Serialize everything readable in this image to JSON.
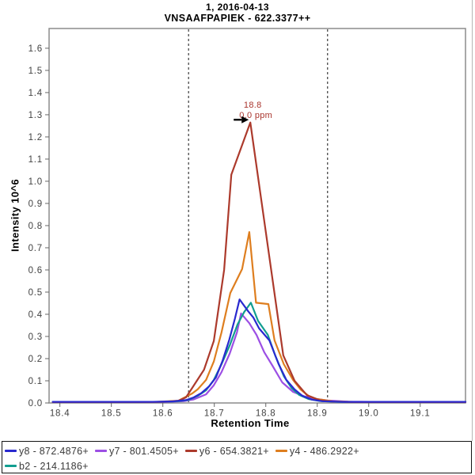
{
  "title": "1, 2016-04-13",
  "subtitle": "VNSAAFPAPIEK - 622.3377++",
  "legend": {
    "rows": [
      [
        {
          "label": "y8 - 872.4876+",
          "color": "#2929CF"
        },
        {
          "label": "y7 - 801.4505+",
          "color": "#9C4FE4"
        },
        {
          "label": "y6 - 654.3821+",
          "color": "#AC3A2C"
        },
        {
          "label": "y4 - 486.2922+",
          "color": "#DE7E1F"
        }
      ],
      [
        {
          "label": "b2 - 214.1186+",
          "color": "#129E90"
        }
      ]
    ]
  },
  "chart_data": {
    "type": "line",
    "title": "1, 2016-04-13",
    "subtitle": "VNSAAFPAPIEK - 622.3377++",
    "xlabel": "Retention Time",
    "ylabel": "Intensity 10^6",
    "xlim": [
      18.379,
      19.188
    ],
    "ylim": [
      0,
      1.689
    ],
    "xticks": [
      18.4,
      18.5,
      18.6,
      18.7,
      18.8,
      18.9,
      19.0,
      19.1
    ],
    "yticks": [
      0.0,
      0.1,
      0.2,
      0.3,
      0.4,
      0.5,
      0.6,
      0.7,
      0.8,
      0.9,
      1.0,
      1.1,
      1.2,
      1.3,
      1.4,
      1.5,
      1.6
    ],
    "grid": false,
    "legend_position": "bottom",
    "peak_boundaries_rt": [
      18.65,
      18.92
    ],
    "annotation": {
      "rt": 18.77,
      "intensity": 1.265,
      "line1": "18.8",
      "line2": "0.0 ppm",
      "color": "#A9342C"
    },
    "draw_order": [
      1,
      4,
      3,
      2,
      0
    ],
    "series": [
      {
        "name": "y8 - 872.4876+",
        "color": "#2929CF",
        "points": [
          [
            18.386,
            0.005
          ],
          [
            18.58,
            0.005
          ],
          [
            18.62,
            0.007
          ],
          [
            18.645,
            0.013
          ],
          [
            18.66,
            0.025
          ],
          [
            18.675,
            0.045
          ],
          [
            18.69,
            0.075
          ],
          [
            18.703,
            0.115
          ],
          [
            18.716,
            0.19
          ],
          [
            18.729,
            0.285
          ],
          [
            18.74,
            0.38
          ],
          [
            18.749,
            0.467
          ],
          [
            18.766,
            0.413
          ],
          [
            18.776,
            0.385
          ],
          [
            18.787,
            0.336
          ],
          [
            18.807,
            0.282
          ],
          [
            18.825,
            0.175
          ],
          [
            18.84,
            0.104
          ],
          [
            18.856,
            0.061
          ],
          [
            18.871,
            0.032
          ],
          [
            18.89,
            0.015
          ],
          [
            18.91,
            0.008
          ],
          [
            18.95,
            0.005
          ],
          [
            19.05,
            0.005
          ],
          [
            19.188,
            0.005
          ]
        ]
      },
      {
        "name": "y7 - 801.4505+",
        "color": "#9C4FE4",
        "points": [
          [
            18.386,
            0.004
          ],
          [
            18.6,
            0.004
          ],
          [
            18.64,
            0.008
          ],
          [
            18.66,
            0.016
          ],
          [
            18.684,
            0.039
          ],
          [
            18.699,
            0.08
          ],
          [
            18.714,
            0.139
          ],
          [
            18.73,
            0.223
          ],
          [
            18.744,
            0.318
          ],
          [
            18.752,
            0.404
          ],
          [
            18.768,
            0.36
          ],
          [
            18.782,
            0.307
          ],
          [
            18.797,
            0.229
          ],
          [
            18.813,
            0.168
          ],
          [
            18.832,
            0.093
          ],
          [
            18.853,
            0.05
          ],
          [
            18.876,
            0.029
          ],
          [
            18.899,
            0.018
          ],
          [
            18.92,
            0.011
          ],
          [
            18.96,
            0.006
          ],
          [
            19.05,
            0.004
          ],
          [
            19.188,
            0.004
          ]
        ]
      },
      {
        "name": "y6 - 654.3821+",
        "color": "#AC3A2C",
        "points": [
          [
            18.386,
            0.004
          ],
          [
            18.55,
            0.004
          ],
          [
            18.6,
            0.005
          ],
          [
            18.63,
            0.01
          ],
          [
            18.645,
            0.025
          ],
          [
            18.657,
            0.068
          ],
          [
            18.68,
            0.15
          ],
          [
            18.699,
            0.28
          ],
          [
            18.719,
            0.6
          ],
          [
            18.733,
            1.03
          ],
          [
            18.77,
            1.265
          ],
          [
            18.834,
            0.215
          ],
          [
            18.856,
            0.1
          ],
          [
            18.88,
            0.035
          ],
          [
            18.905,
            0.012
          ],
          [
            18.93,
            0.006
          ],
          [
            18.97,
            0.004
          ],
          [
            19.05,
            0.004
          ],
          [
            19.188,
            0.004
          ]
        ]
      },
      {
        "name": "y4 - 486.2922+",
        "color": "#DE7E1F",
        "points": [
          [
            18.386,
            0.004
          ],
          [
            18.58,
            0.004
          ],
          [
            18.63,
            0.01
          ],
          [
            18.657,
            0.043
          ],
          [
            18.668,
            0.062
          ],
          [
            18.684,
            0.104
          ],
          [
            18.699,
            0.187
          ],
          [
            18.714,
            0.318
          ],
          [
            18.731,
            0.496
          ],
          [
            18.754,
            0.604
          ],
          [
            18.768,
            0.771
          ],
          [
            18.781,
            0.452
          ],
          [
            18.805,
            0.446
          ],
          [
            18.817,
            0.282
          ],
          [
            18.835,
            0.175
          ],
          [
            18.853,
            0.104
          ],
          [
            18.868,
            0.06
          ],
          [
            18.883,
            0.032
          ],
          [
            18.899,
            0.018
          ],
          [
            18.93,
            0.007
          ],
          [
            18.97,
            0.005
          ],
          [
            19.188,
            0.004
          ]
        ]
      },
      {
        "name": "b2 - 214.1186+",
        "color": "#129E90",
        "points": [
          [
            18.386,
            0.005
          ],
          [
            18.6,
            0.005
          ],
          [
            18.63,
            0.008
          ],
          [
            18.65,
            0.014
          ],
          [
            18.668,
            0.032
          ],
          [
            18.684,
            0.057
          ],
          [
            18.699,
            0.104
          ],
          [
            18.714,
            0.175
          ],
          [
            18.73,
            0.26
          ],
          [
            18.745,
            0.354
          ],
          [
            18.758,
            0.41
          ],
          [
            18.771,
            0.452
          ],
          [
            18.785,
            0.37
          ],
          [
            18.804,
            0.307
          ],
          [
            18.819,
            0.21
          ],
          [
            18.835,
            0.121
          ],
          [
            18.85,
            0.068
          ],
          [
            18.865,
            0.036
          ],
          [
            18.883,
            0.018
          ],
          [
            18.905,
            0.009
          ],
          [
            18.94,
            0.005
          ],
          [
            19.188,
            0.005
          ]
        ]
      }
    ]
  }
}
